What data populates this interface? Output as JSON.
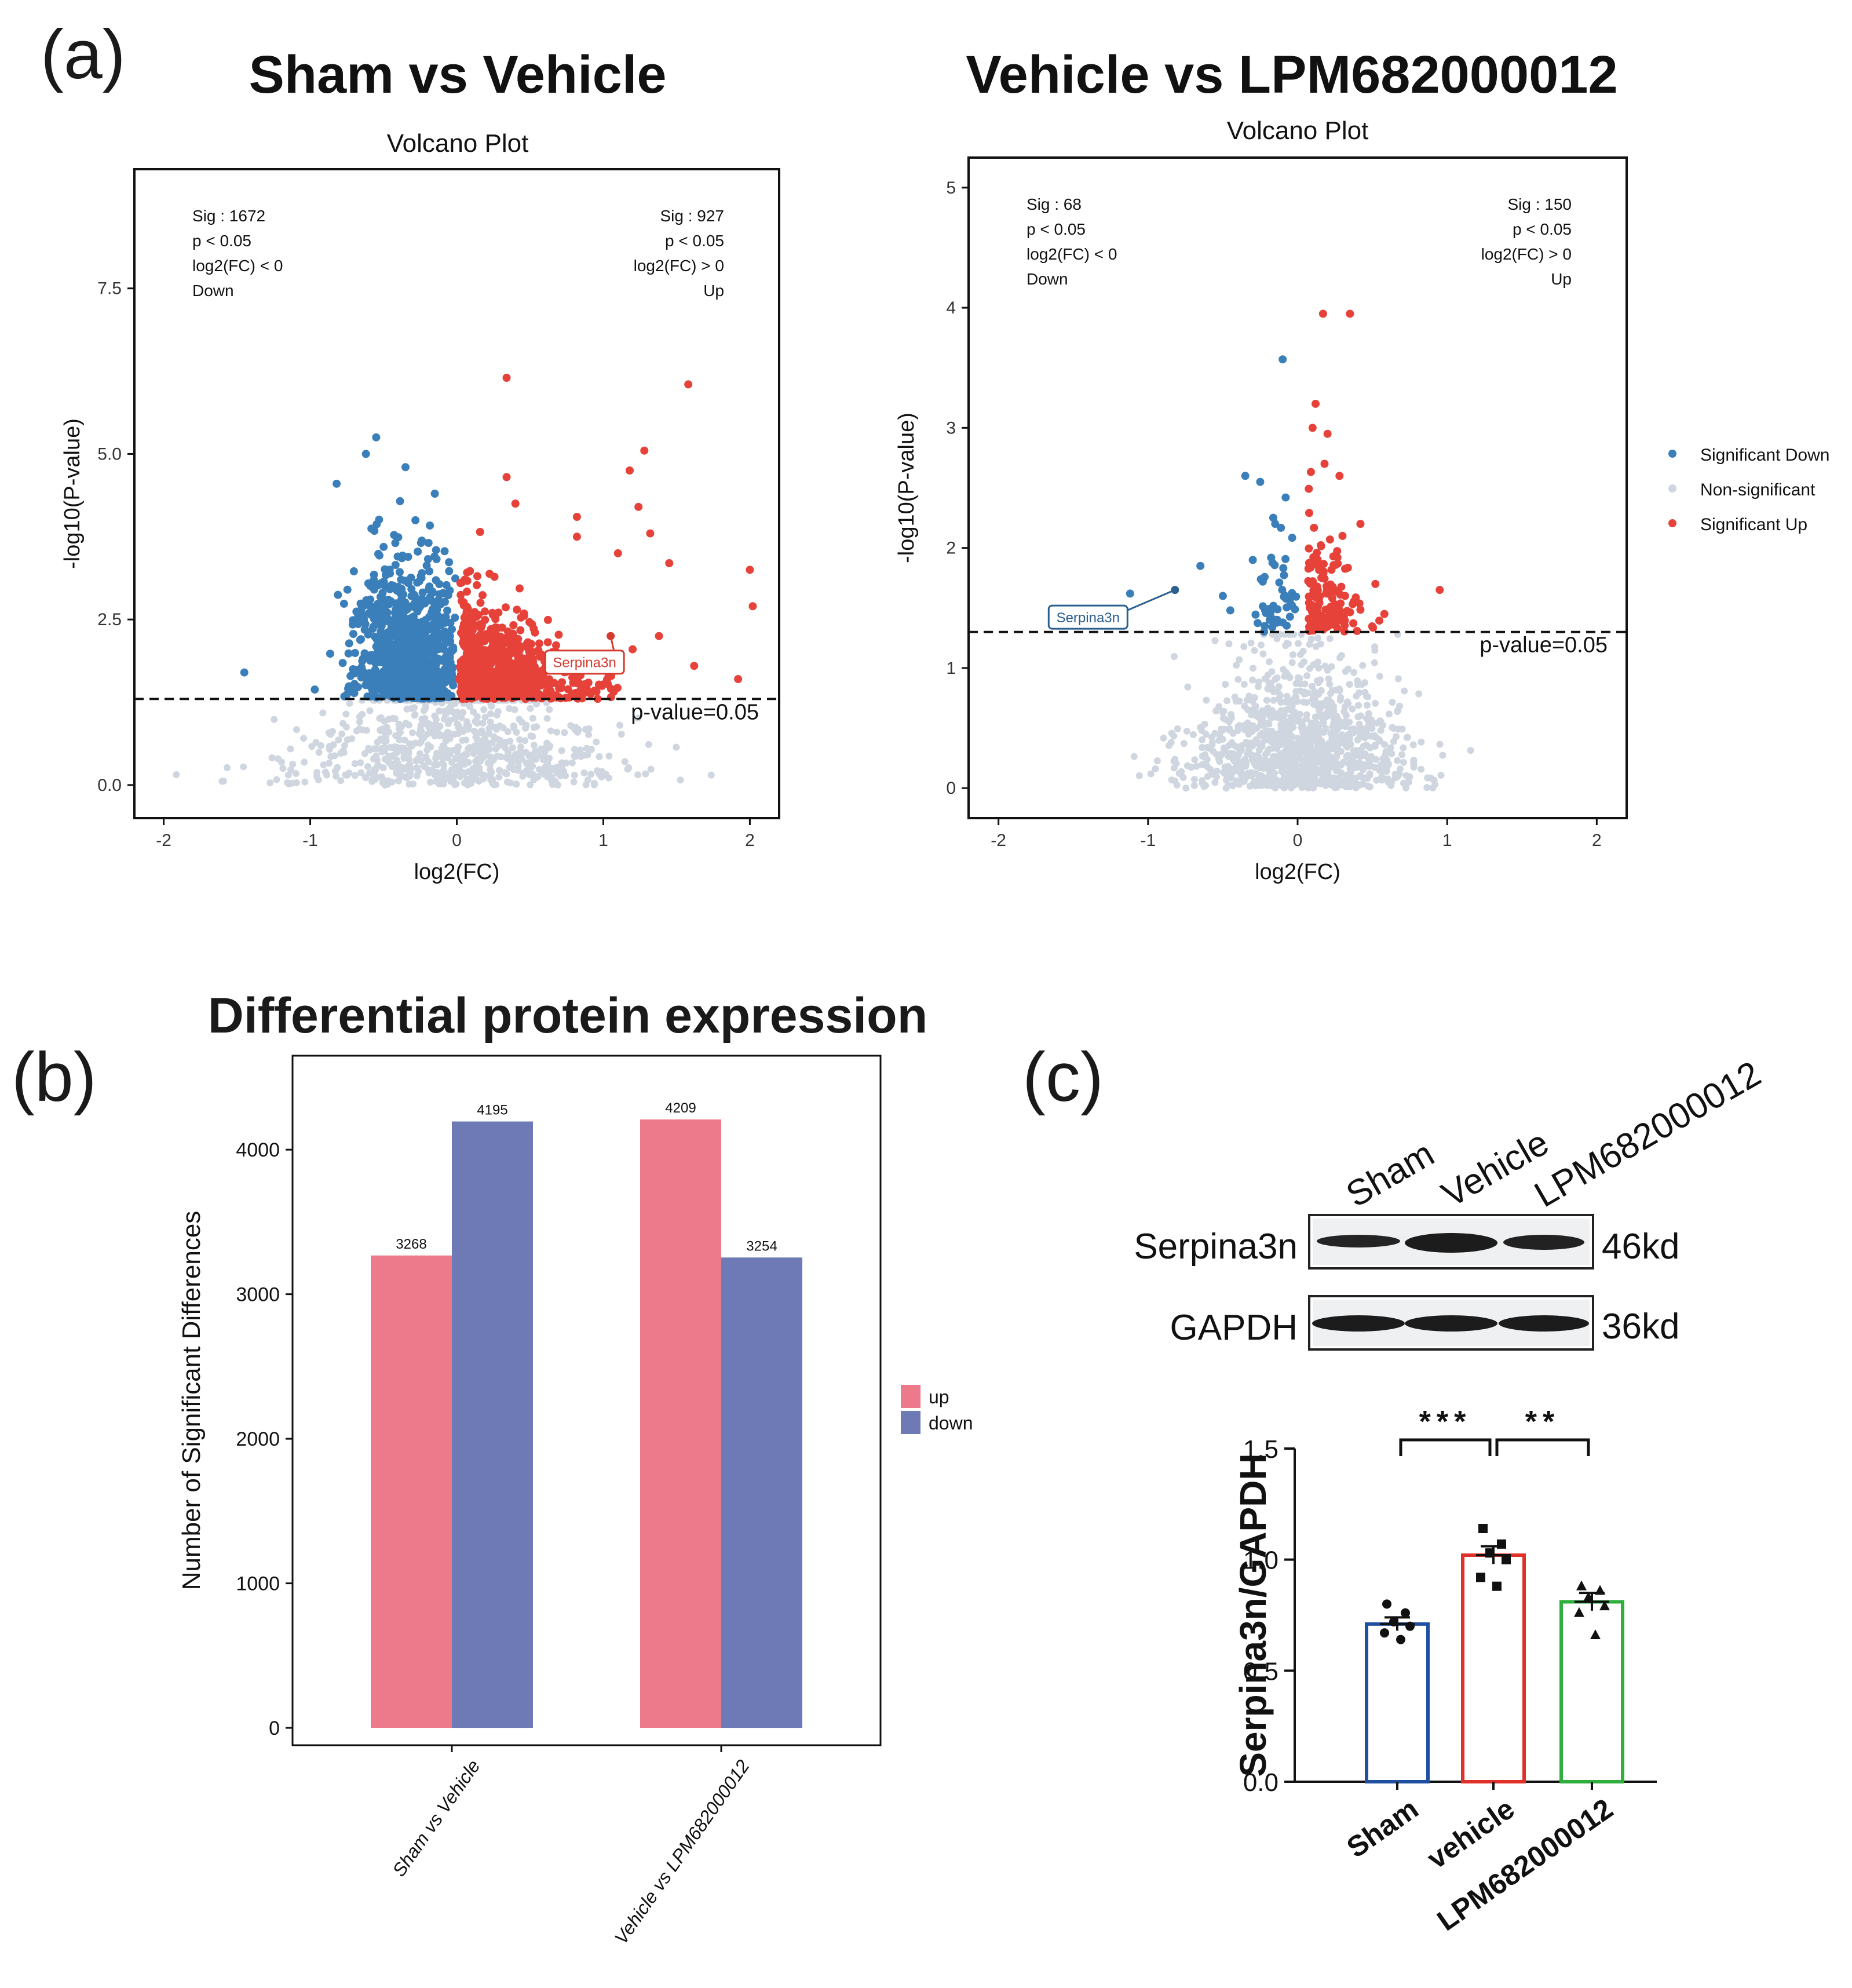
{
  "colors": {
    "sig_down": "#3a7fba",
    "non_sig": "#cfd6df",
    "sig_up": "#e6423a",
    "bar_up": "#ec7a8b",
    "bar_down": "#6e7ab5",
    "wb_sham": "#1f4fa0",
    "wb_vehicle": "#e03028",
    "wb_lpm": "#2fae3d"
  },
  "panel_a": {
    "label": "(a)",
    "legend": [
      "Significant Down",
      "Non-significant",
      "Significant Up"
    ]
  },
  "panel_b": {
    "label": "(b)"
  },
  "panel_c": {
    "label": "(c)",
    "blot_lanes": [
      "Sham",
      "Vehicle",
      "LPM682000012"
    ],
    "blot_rows": [
      {
        "protein": "Serpina3n",
        "size": "46kd"
      },
      {
        "protein": "GAPDH",
        "size": "36kd"
      }
    ]
  },
  "chart_data": [
    {
      "type": "scatter",
      "heading": "Sham vs Vehicle",
      "title": "Volcano Plot",
      "xlabel": "log2(FC)",
      "ylabel": "-log10(P-value)",
      "xlim": [
        -2.2,
        2.2
      ],
      "ylim": [
        -0.5,
        9.3
      ],
      "xticks": [
        "-2",
        "-1",
        "0",
        "1",
        "2"
      ],
      "yticks": [
        "0.0",
        "2.5",
        "5.0",
        "7.5"
      ],
      "threshold_label": "p-value=0.05",
      "threshold": 1.3,
      "down_note": [
        "Sig : 1672",
        "p < 0.05",
        "log2(FC) < 0",
        "Down"
      ],
      "up_note": [
        "Sig : 927",
        "p < 0.05",
        "log2(FC) > 0",
        "Up"
      ],
      "highlight": {
        "label": "Serpina3n",
        "x": 1.05,
        "y": 2.25
      },
      "significant_down_outliers": [
        [
          -1.45,
          1.7
        ],
        [
          -0.55,
          5.25
        ],
        [
          -0.62,
          5.0
        ],
        [
          -0.82,
          4.55
        ],
        [
          -0.35,
          4.8
        ],
        [
          -0.15,
          4.4
        ]
      ],
      "significant_up_outliers": [
        [
          0.34,
          6.15
        ],
        [
          1.58,
          6.05
        ],
        [
          1.28,
          5.05
        ],
        [
          1.18,
          4.75
        ],
        [
          0.34,
          4.65
        ],
        [
          1.24,
          4.2
        ],
        [
          0.4,
          4.25
        ],
        [
          0.82,
          4.05
        ],
        [
          1.32,
          3.8
        ],
        [
          0.82,
          3.75
        ],
        [
          2.0,
          3.25
        ],
        [
          2.02,
          2.7
        ],
        [
          1.38,
          2.25
        ],
        [
          1.2,
          2.05
        ],
        [
          1.62,
          1.8
        ],
        [
          1.92,
          1.6
        ],
        [
          1.45,
          3.35
        ],
        [
          1.1,
          3.5
        ]
      ],
      "significant_down_count": 1672,
      "significant_up_count": 927
    },
    {
      "type": "scatter",
      "heading": "Vehicle vs LPM682000012",
      "title": "Volcano Plot",
      "xlabel": "log2(FC)",
      "ylabel": "-log10(P-value)",
      "xlim": [
        -2.2,
        2.2
      ],
      "ylim": [
        -0.25,
        5.25
      ],
      "xticks": [
        "-2",
        "-1",
        "0",
        "1",
        "2"
      ],
      "yticks": [
        "0",
        "1",
        "2",
        "3",
        "4",
        "5"
      ],
      "threshold_label": "p-value=0.05",
      "threshold": 1.3,
      "down_note": [
        "Sig : 68",
        "p < 0.05",
        "log2(FC) < 0",
        "Down"
      ],
      "up_note": [
        "Sig : 150",
        "p < 0.05",
        "log2(FC) > 0",
        "Up"
      ],
      "highlight": {
        "label": "Serpina3n",
        "x": -0.82,
        "y": 1.65
      },
      "significant_down_outliers": [
        [
          -0.1,
          3.57
        ],
        [
          -0.35,
          2.6
        ],
        [
          -0.25,
          2.55
        ],
        [
          -0.08,
          2.42
        ],
        [
          -0.65,
          1.85
        ],
        [
          -0.5,
          1.6
        ],
        [
          -1.12,
          1.62
        ],
        [
          -0.22,
          1.35
        ],
        [
          -0.45,
          1.48
        ],
        [
          -0.15,
          2.2
        ],
        [
          -0.3,
          1.9
        ]
      ],
      "significant_up_outliers": [
        [
          0.17,
          3.95
        ],
        [
          0.35,
          3.95
        ],
        [
          0.12,
          3.2
        ],
        [
          0.1,
          3.0
        ],
        [
          0.2,
          2.95
        ],
        [
          0.28,
          2.6
        ],
        [
          0.42,
          2.2
        ],
        [
          0.52,
          1.7
        ],
        [
          0.58,
          1.45
        ],
        [
          0.95,
          1.65
        ],
        [
          0.3,
          2.1
        ],
        [
          0.18,
          2.7
        ]
      ],
      "significant_down_count": 68,
      "significant_up_count": 150
    },
    {
      "type": "bar",
      "heading": "Differential protein expression",
      "ylabel": "Number of Significant Differences",
      "categories": [
        "Sham vs Vehicle",
        "Vehicle vs LPM682000012"
      ],
      "series": [
        {
          "name": "up",
          "values": [
            3268,
            4209
          ]
        },
        {
          "name": "down",
          "values": [
            4195,
            3254
          ]
        }
      ],
      "value_labels": [
        [
          "3268",
          "4195"
        ],
        [
          "4209",
          "3254"
        ]
      ],
      "yticks": [
        "0",
        "1000",
        "2000",
        "3000",
        "4000"
      ],
      "ylim": [
        -120,
        4650
      ]
    },
    {
      "type": "bar",
      "ylabel": "Serpina3n/GAPDH",
      "categories": [
        "Sham",
        "vehicle",
        "LPM682000012"
      ],
      "values": [
        0.71,
        1.02,
        0.81
      ],
      "errors": [
        0.03,
        0.04,
        0.04
      ],
      "yticks": [
        "0.0",
        "0.5",
        "1.0",
        "1.5"
      ],
      "ylim": [
        0,
        1.5
      ],
      "points": [
        [
          0.8,
          0.76,
          0.72,
          0.7,
          0.67,
          0.64
        ],
        [
          1.14,
          1.07,
          1.03,
          1.0,
          0.92,
          0.88
        ],
        [
          0.88,
          0.86,
          0.83,
          0.79,
          0.76,
          0.66
        ]
      ],
      "significance": [
        {
          "from": 0,
          "to": 1,
          "label": "***"
        },
        {
          "from": 1,
          "to": 2,
          "label": "**"
        }
      ]
    }
  ]
}
